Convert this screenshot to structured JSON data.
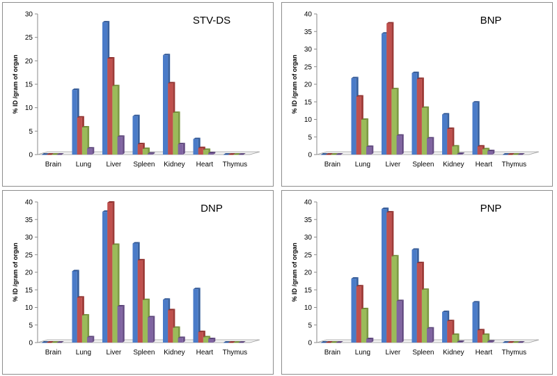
{
  "colors": {
    "series": [
      "#4a7bc8",
      "#c0504d",
      "#9bbb59",
      "#8064a2"
    ],
    "series_dark": [
      "#2e5593",
      "#8c2d2a",
      "#6f8c35",
      "#5a4478"
    ],
    "series_side": [
      "#37609e",
      "#9e3b38",
      "#7d9a43",
      "#684f86"
    ]
  },
  "chart_data": [
    {
      "type": "bar",
      "title": "STV-DS",
      "ylabel": "% ID /gram of organ",
      "categories": [
        "Brain",
        "Lung",
        "Liver",
        "Spleen",
        "Kidney",
        "Heart",
        "Thymus"
      ],
      "ylim": [
        0,
        30
      ],
      "yticks": [
        "0",
        "5",
        "10",
        "15",
        "20",
        "25",
        "30"
      ],
      "series": [
        {
          "values": [
            0,
            13.8,
            28.2,
            8.2,
            21.2,
            3.3,
            0
          ]
        },
        {
          "values": [
            0,
            7.9,
            20.5,
            2.2,
            15.2,
            1.4,
            0
          ]
        },
        {
          "values": [
            0,
            5.8,
            14.6,
            1.2,
            8.9,
            1.0,
            0
          ]
        },
        {
          "values": [
            0,
            1.3,
            3.8,
            0.2,
            2.2,
            0.3,
            0
          ]
        }
      ]
    },
    {
      "type": "bar",
      "title": "BNP",
      "ylabel": "% ID /gram of organ",
      "categories": [
        "Brain",
        "Lung",
        "Liver",
        "Spleen",
        "Kidney",
        "Heart",
        "Thymus"
      ],
      "ylim": [
        0,
        40
      ],
      "yticks": [
        "0",
        "5",
        "10",
        "15",
        "20",
        "25",
        "30",
        "35",
        "40"
      ],
      "series": [
        {
          "values": [
            0,
            21.7,
            34.4,
            23.2,
            11.4,
            14.8,
            0
          ]
        },
        {
          "values": [
            0,
            16.5,
            37.3,
            21.5,
            7.3,
            2.3,
            0
          ]
        },
        {
          "values": [
            0,
            9.9,
            18.6,
            13.3,
            2.3,
            1.5,
            0
          ]
        },
        {
          "values": [
            0,
            2.2,
            5.4,
            4.6,
            0.2,
            1.0,
            0
          ]
        }
      ]
    },
    {
      "type": "bar",
      "title": "DNP",
      "ylabel": "% ID /gram of organ",
      "categories": [
        "Brain",
        "Lung",
        "Liver",
        "Spleen",
        "Kidney",
        "Heart",
        "Thymus"
      ],
      "ylim": [
        0,
        40
      ],
      "yticks": [
        "0",
        "5",
        "10",
        "15",
        "20",
        "25",
        "30",
        "35",
        "40"
      ],
      "series": [
        {
          "values": [
            0,
            20.3,
            37.2,
            28.2,
            12.2,
            15.2,
            0
          ]
        },
        {
          "values": [
            0,
            12.8,
            39.8,
            23.4,
            9.2,
            3.0,
            0
          ]
        },
        {
          "values": [
            0,
            7.7,
            27.8,
            12.1,
            4.2,
            1.5,
            0
          ]
        },
        {
          "values": [
            0,
            1.5,
            10.3,
            7.2,
            1.3,
            1.0,
            0
          ]
        }
      ]
    },
    {
      "type": "bar",
      "title": "PNP",
      "ylabel": "% ID /gram of organ",
      "categories": [
        "Brain",
        "Lung",
        "Liver",
        "Spleen",
        "Kidney",
        "Heart",
        "Thymus"
      ],
      "ylim": [
        0,
        40
      ],
      "yticks": [
        "0",
        "5",
        "10",
        "15",
        "20",
        "25",
        "30",
        "35",
        "40"
      ],
      "series": [
        {
          "values": [
            0,
            18.2,
            38.0,
            26.4,
            8.7,
            11.4,
            0
          ]
        },
        {
          "values": [
            0,
            16.0,
            37.0,
            22.6,
            6.1,
            3.5,
            0
          ]
        },
        {
          "values": [
            0,
            9.5,
            24.5,
            15.0,
            2.2,
            2.2,
            0
          ]
        },
        {
          "values": [
            0,
            1.0,
            11.8,
            4.0,
            0.2,
            0.3,
            0
          ]
        }
      ]
    }
  ]
}
